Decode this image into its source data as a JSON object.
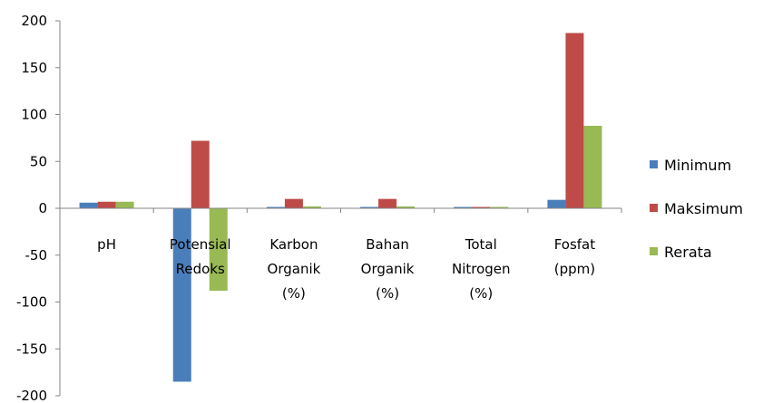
{
  "chart_data": {
    "type": "bar",
    "categories": [
      [
        "pH"
      ],
      [
        "Potensial",
        "Redoks"
      ],
      [
        "Karbon",
        "Organik",
        "(%)"
      ],
      [
        "Bahan",
        "Organik",
        "(%)"
      ],
      [
        "Total",
        "Nitrogen",
        "(%)"
      ],
      [
        "Fosfat",
        "(ppm)"
      ]
    ],
    "series": [
      {
        "name": "Minimum",
        "color": "#4A7EBB",
        "values": [
          6,
          -185,
          1,
          1,
          0.5,
          9
        ]
      },
      {
        "name": "Maksimum",
        "color": "#BE4B48",
        "values": [
          7,
          72,
          10,
          10,
          1,
          187
        ]
      },
      {
        "name": "Rerata",
        "color": "#98B954",
        "values": [
          7,
          -88,
          2,
          2,
          0.5,
          88
        ]
      }
    ],
    "ylim": [
      -200,
      200
    ],
    "yticks": [
      200,
      150,
      100,
      50,
      0,
      -50,
      -100,
      -150,
      -200
    ],
    "legend_position": "right",
    "grid": false
  }
}
